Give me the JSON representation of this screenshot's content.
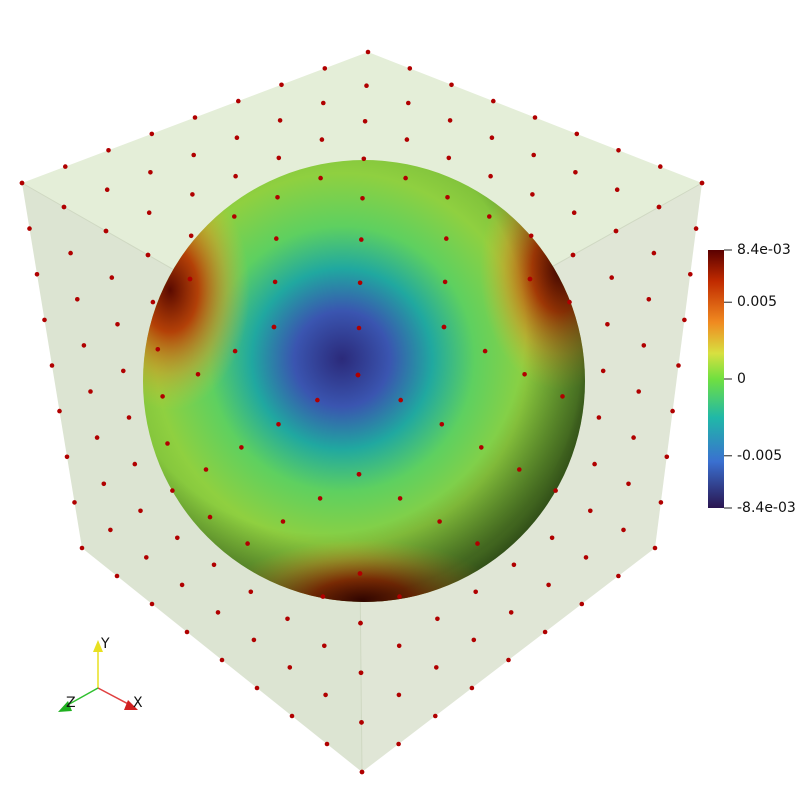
{
  "colorbar": {
    "ticks": [
      {
        "value": -0.0084,
        "label": "-8.4e-03"
      },
      -0.005,
      0,
      0.005,
      {
        "value": 0.0084,
        "label": "8.4e-03"
      }
    ]
  },
  "orientation_axes": {
    "x": "X",
    "y": "Y",
    "z": "Z"
  }
}
